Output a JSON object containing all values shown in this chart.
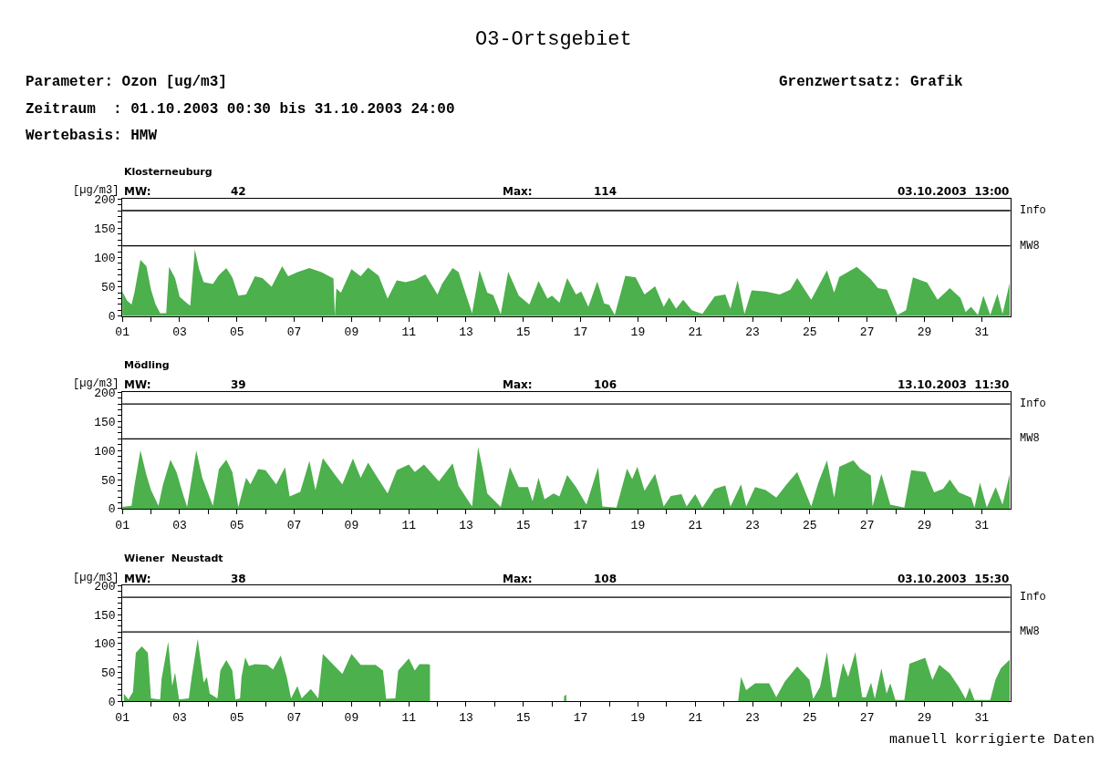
{
  "chart_data": [
    {
      "type": "area",
      "title": "O3-Ortsgebiet",
      "subtitle": "Klosterneuburg",
      "ylabel": "[µg/m3]",
      "annotations": [
        "Parameter: Ozon [ug/m3]",
        "Zeitraum  : 01.10.2003 00:30 bis 31.10.2003 24:00",
        "Wertebasis: HMW",
        "Grenzwertsatz: Grafik",
        "MW:",
        "42",
        "Max:",
        "114",
        "03.10.2003  13:00"
      ],
      "x": [
        1.0,
        1.16,
        1.32,
        1.42,
        1.63,
        1.84,
        2.0,
        2.16,
        2.32,
        2.53,
        2.63,
        2.84,
        3.0,
        3.26,
        3.37,
        3.53,
        3.68,
        3.84,
        4.16,
        4.37,
        4.63,
        4.84,
        5.05,
        5.32,
        5.63,
        5.89,
        6.21,
        6.58,
        6.79,
        7.11,
        7.53,
        7.95,
        8.37,
        8.42,
        8.47,
        8.63,
        9.0,
        9.32,
        9.58,
        9.95,
        10.26,
        10.58,
        10.89,
        11.21,
        11.58,
        12.0,
        12.16,
        12.53,
        12.74,
        13.21,
        13.47,
        13.74,
        13.95,
        14.21,
        14.47,
        14.84,
        15.21,
        15.53,
        15.84,
        16.0,
        16.26,
        16.53,
        16.84,
        17.02,
        17.27,
        17.58,
        17.82,
        18.0,
        18.19,
        18.56,
        18.92,
        19.23,
        19.6,
        19.9,
        20.09,
        20.33,
        20.58,
        20.88,
        21.25,
        21.68,
        22.05,
        22.23,
        22.48,
        22.72,
        22.97,
        23.46,
        23.95,
        24.32,
        24.56,
        25.05,
        25.6,
        25.85,
        26.03,
        26.64,
        27.13,
        27.38,
        27.69,
        28.06,
        28.36,
        28.6,
        29.1,
        29.46,
        29.89,
        30.26,
        30.44,
        30.63,
        30.87,
        31.06,
        31.3,
        31.55,
        31.73,
        31.98
      ],
      "series": [
        {
          "color": "#4cb04c",
          "values": [
            42,
            27,
            20,
            40,
            96,
            85,
            45,
            20,
            5,
            5,
            84,
            65,
            33,
            22,
            18,
            114,
            80,
            58,
            55,
            70,
            82,
            66,
            35,
            37,
            68,
            65,
            50,
            85,
            68,
            75,
            82,
            75,
            64,
            0,
            47,
            40,
            80,
            68,
            83,
            69,
            30,
            61,
            58,
            62,
            71,
            37,
            55,
            82,
            75,
            5,
            78,
            40,
            36,
            3,
            76,
            35,
            20,
            60,
            30,
            35,
            23,
            65,
            37,
            42,
            16,
            59,
            22,
            19,
            2,
            69,
            66,
            37,
            51,
            16,
            32,
            13,
            28,
            10,
            4,
            34,
            37,
            13,
            61,
            4,
            44,
            42,
            37,
            45,
            65,
            28,
            78,
            40,
            67,
            84,
            63,
            48,
            45,
            2,
            10,
            66,
            57,
            28,
            48,
            31,
            7,
            16,
            2,
            35,
            2,
            38,
            4,
            57
          ]
        }
      ],
      "xlim": [
        1,
        32
      ],
      "ylim": [
        0,
        200
      ],
      "xticks": [
        {
          "value": 1,
          "label": "01"
        },
        {
          "value": 2,
          "label": null
        },
        {
          "value": 3,
          "label": "03"
        },
        {
          "value": 4,
          "label": null
        },
        {
          "value": 5,
          "label": "05"
        },
        {
          "value": 6,
          "label": null
        },
        {
          "value": 7,
          "label": "07"
        },
        {
          "value": 8,
          "label": null
        },
        {
          "value": 9,
          "label": "09"
        },
        {
          "value": 10,
          "label": null
        },
        {
          "value": 11,
          "label": "11"
        },
        {
          "value": 12,
          "label": null
        },
        {
          "value": 13,
          "label": "13"
        },
        {
          "value": 14,
          "label": null
        },
        {
          "value": 15,
          "label": "15"
        },
        {
          "value": 16,
          "label": null
        },
        {
          "value": 17,
          "label": "17"
        },
        {
          "value": 18,
          "label": null
        },
        {
          "value": 19,
          "label": "19"
        },
        {
          "value": 20,
          "label": null
        },
        {
          "value": 21,
          "label": "21"
        },
        {
          "value": 22,
          "label": null
        },
        {
          "value": 23,
          "label": "23"
        },
        {
          "value": 24,
          "label": null
        },
        {
          "value": 25,
          "label": "25"
        },
        {
          "value": 26,
          "label": null
        },
        {
          "value": 27,
          "label": "27"
        },
        {
          "value": 28,
          "label": null
        },
        {
          "value": 29,
          "label": "29"
        },
        {
          "value": 30,
          "label": null
        },
        {
          "value": 31,
          "label": "31"
        }
      ],
      "yticks": [
        0,
        {
          "value": 10,
          "label": null
        },
        {
          "value": 20,
          "label": null
        },
        {
          "value": 30,
          "label": null
        },
        {
          "value": 40,
          "label": null
        },
        50,
        {
          "value": 60,
          "label": null
        },
        {
          "value": 70,
          "label": null
        },
        {
          "value": 80,
          "label": null
        },
        {
          "value": 90,
          "label": null
        },
        100,
        {
          "value": 110,
          "label": null
        },
        {
          "value": 120,
          "label": null
        },
        {
          "value": 130,
          "label": null
        },
        {
          "value": 140,
          "label": null
        },
        150,
        {
          "value": 160,
          "label": null
        },
        {
          "value": 170,
          "label": null
        },
        {
          "value": 180,
          "label": null
        },
        {
          "value": 190,
          "label": null
        },
        200
      ],
      "ref_lines": [
        {
          "axis": "y",
          "value": 180,
          "label": "Info",
          "color": "#000000"
        },
        {
          "axis": "y",
          "value": 120,
          "label": "MW8",
          "color": "#000000"
        }
      ],
      "marker": "none"
    },
    {
      "type": "area",
      "subtitle": "Mödling",
      "ylabel": "[µg/m3]",
      "annotations": [
        "MW:",
        "39",
        "Max:",
        "106",
        "13.10.2003  11:30"
      ],
      "x": [
        1.0,
        1.32,
        1.42,
        1.63,
        1.84,
        2.0,
        2.26,
        2.42,
        2.68,
        2.89,
        3.11,
        3.26,
        3.58,
        3.79,
        4.16,
        4.37,
        4.63,
        4.84,
        5.05,
        5.32,
        5.47,
        5.74,
        6.0,
        6.37,
        6.68,
        6.84,
        7.21,
        7.53,
        7.74,
        8.0,
        8.47,
        8.68,
        9.05,
        9.32,
        9.58,
        9.95,
        10.26,
        10.58,
        11.0,
        11.21,
        11.53,
        12.05,
        12.53,
        12.74,
        13.21,
        13.42,
        13.58,
        13.74,
        14.21,
        14.53,
        14.84,
        15.16,
        15.32,
        15.53,
        15.74,
        16.05,
        16.26,
        16.53,
        16.84,
        17.2,
        17.61,
        17.76,
        18.25,
        18.62,
        18.8,
        18.98,
        19.23,
        19.6,
        19.9,
        20.15,
        20.52,
        20.7,
        21.0,
        21.25,
        21.68,
        22.05,
        22.23,
        22.6,
        22.78,
        23.09,
        23.46,
        23.83,
        24.19,
        24.56,
        25.05,
        25.3,
        25.6,
        25.85,
        26.03,
        26.52,
        26.76,
        27.13,
        27.19,
        27.5,
        27.81,
        28.3,
        28.54,
        29.04,
        29.34,
        29.65,
        29.89,
        30.2,
        30.63,
        30.75,
        30.94,
        31.18,
        31.49,
        31.73,
        31.98
      ],
      "series": [
        {
          "color": "#4cb04c",
          "values": [
            3,
            5,
            39,
            100,
            58,
            32,
            5,
            42,
            84,
            63,
            26,
            3,
            100,
            53,
            5,
            68,
            84,
            63,
            3,
            53,
            42,
            68,
            66,
            42,
            71,
            21,
            29,
            82,
            32,
            87,
            55,
            42,
            86,
            53,
            79,
            50,
            26,
            66,
            76,
            63,
            76,
            47,
            78,
            39,
            4,
            106,
            68,
            26,
            3,
            71,
            37,
            37,
            13,
            53,
            16,
            26,
            21,
            58,
            37,
            7,
            71,
            4,
            2,
            69,
            51,
            72,
            31,
            60,
            4,
            22,
            25,
            4,
            25,
            2,
            34,
            40,
            4,
            42,
            4,
            37,
            32,
            19,
            42,
            63,
            4,
            45,
            83,
            19,
            72,
            83,
            69,
            57,
            4,
            60,
            7,
            2,
            66,
            63,
            28,
            34,
            50,
            28,
            19,
            2,
            45,
            2,
            37,
            7,
            60
          ]
        }
      ],
      "xlim": [
        1,
        32
      ],
      "ylim": [
        0,
        200
      ],
      "xticks": [
        {
          "value": 1,
          "label": "01"
        },
        {
          "value": 2,
          "label": null
        },
        {
          "value": 3,
          "label": "03"
        },
        {
          "value": 4,
          "label": null
        },
        {
          "value": 5,
          "label": "05"
        },
        {
          "value": 6,
          "label": null
        },
        {
          "value": 7,
          "label": "07"
        },
        {
          "value": 8,
          "label": null
        },
        {
          "value": 9,
          "label": "09"
        },
        {
          "value": 10,
          "label": null
        },
        {
          "value": 11,
          "label": "11"
        },
        {
          "value": 12,
          "label": null
        },
        {
          "value": 13,
          "label": "13"
        },
        {
          "value": 14,
          "label": null
        },
        {
          "value": 15,
          "label": "15"
        },
        {
          "value": 16,
          "label": null
        },
        {
          "value": 17,
          "label": "17"
        },
        {
          "value": 18,
          "label": null
        },
        {
          "value": 19,
          "label": "19"
        },
        {
          "value": 20,
          "label": null
        },
        {
          "value": 21,
          "label": "21"
        },
        {
          "value": 22,
          "label": null
        },
        {
          "value": 23,
          "label": "23"
        },
        {
          "value": 24,
          "label": null
        },
        {
          "value": 25,
          "label": "25"
        },
        {
          "value": 26,
          "label": null
        },
        {
          "value": 27,
          "label": "27"
        },
        {
          "value": 28,
          "label": null
        },
        {
          "value": 29,
          "label": "29"
        },
        {
          "value": 30,
          "label": null
        },
        {
          "value": 31,
          "label": "31"
        }
      ],
      "yticks": [
        0,
        {
          "value": 10,
          "label": null
        },
        {
          "value": 20,
          "label": null
        },
        {
          "value": 30,
          "label": null
        },
        {
          "value": 40,
          "label": null
        },
        50,
        {
          "value": 60,
          "label": null
        },
        {
          "value": 70,
          "label": null
        },
        {
          "value": 80,
          "label": null
        },
        {
          "value": 90,
          "label": null
        },
        100,
        {
          "value": 110,
          "label": null
        },
        {
          "value": 120,
          "label": null
        },
        {
          "value": 130,
          "label": null
        },
        {
          "value": 140,
          "label": null
        },
        150,
        {
          "value": 160,
          "label": null
        },
        {
          "value": 170,
          "label": null
        },
        {
          "value": 180,
          "label": null
        },
        {
          "value": 190,
          "label": null
        },
        200
      ],
      "ref_lines": [
        {
          "axis": "y",
          "value": 180,
          "label": "Info",
          "color": "#000000"
        },
        {
          "axis": "y",
          "value": 120,
          "label": "MW8",
          "color": "#000000"
        }
      ],
      "marker": "none"
    },
    {
      "type": "area",
      "subtitle": "Wiener  Neustadt",
      "ylabel": "[µg/m3]",
      "annotations": [
        "MW:",
        "38",
        "Max:",
        "108",
        "03.10.2003  15:30",
        "manuell korrigierte Daten"
      ],
      "x": [
        1.05,
        1.21,
        1.37,
        1.47,
        1.68,
        1.89,
        2.0,
        2.32,
        2.37,
        2.6,
        2.74,
        2.84,
        2.98,
        3.32,
        3.42,
        3.63,
        3.84,
        3.95,
        4.05,
        4.32,
        4.42,
        4.63,
        4.84,
        4.95,
        5.11,
        5.16,
        5.29,
        5.42,
        5.63,
        6.05,
        6.26,
        6.53,
        6.74,
        6.89,
        7.11,
        7.26,
        7.58,
        7.84,
        8.0,
        8.37,
        8.68,
        9.0,
        9.32,
        9.84,
        10.1,
        10.21,
        10.53,
        10.63,
        11.0,
        11.21,
        11.37,
        11.68,
        11.74,
        11.76,
        16.42,
        16.5,
        16.53,
        22.5,
        22.6,
        22.78,
        23.09,
        23.58,
        23.83,
        24.13,
        24.56,
        24.99,
        25.12,
        25.36,
        25.6,
        25.79,
        25.91,
        26.16,
        26.34,
        26.59,
        26.83,
        26.96,
        27.14,
        27.27,
        27.5,
        27.68,
        27.81,
        27.99,
        28.3,
        28.48,
        29.03,
        29.28,
        29.52,
        29.89,
        30.2,
        30.44,
        30.58,
        30.75,
        31.3,
        31.48,
        31.67,
        31.98
      ],
      "series": [
        {
          "color": "#4cb04c",
          "values": [
            13,
            3,
            16,
            84,
            95,
            84,
            5,
            3,
            39,
            103,
            26,
            50,
            3,
            5,
            42,
            108,
            32,
            42,
            13,
            5,
            53,
            71,
            53,
            3,
            5,
            42,
            76,
            61,
            64,
            63,
            55,
            79,
            42,
            5,
            26,
            5,
            21,
            5,
            82,
            63,
            47,
            82,
            63,
            63,
            53,
            4,
            5,
            53,
            74,
            53,
            64,
            64,
            63,
            null,
            9,
            11,
            null,
            1,
            42,
            19,
            31,
            31,
            7,
            34,
            60,
            37,
            4,
            25,
            85,
            7,
            7,
            66,
            42,
            85,
            7,
            7,
            32,
            4,
            57,
            13,
            31,
            2,
            2,
            65,
            75,
            37,
            63,
            48,
            25,
            4,
            24,
            2,
            2,
            37,
            57,
            72
          ]
        }
      ],
      "xlim": [
        1,
        32
      ],
      "ylim": [
        0,
        200
      ],
      "xticks": [
        {
          "value": 1,
          "label": "01"
        },
        {
          "value": 2,
          "label": null
        },
        {
          "value": 3,
          "label": "03"
        },
        {
          "value": 4,
          "label": null
        },
        {
          "value": 5,
          "label": "05"
        },
        {
          "value": 6,
          "label": null
        },
        {
          "value": 7,
          "label": "07"
        },
        {
          "value": 8,
          "label": null
        },
        {
          "value": 9,
          "label": "09"
        },
        {
          "value": 10,
          "label": null
        },
        {
          "value": 11,
          "label": "11"
        },
        {
          "value": 12,
          "label": null
        },
        {
          "value": 13,
          "label": "13"
        },
        {
          "value": 14,
          "label": null
        },
        {
          "value": 15,
          "label": "15"
        },
        {
          "value": 16,
          "label": null
        },
        {
          "value": 17,
          "label": "17"
        },
        {
          "value": 18,
          "label": null
        },
        {
          "value": 19,
          "label": "19"
        },
        {
          "value": 20,
          "label": null
        },
        {
          "value": 21,
          "label": "21"
        },
        {
          "value": 22,
          "label": null
        },
        {
          "value": 23,
          "label": "23"
        },
        {
          "value": 24,
          "label": null
        },
        {
          "value": 25,
          "label": "25"
        },
        {
          "value": 26,
          "label": null
        },
        {
          "value": 27,
          "label": "27"
        },
        {
          "value": 28,
          "label": null
        },
        {
          "value": 29,
          "label": "29"
        },
        {
          "value": 30,
          "label": null
        },
        {
          "value": 31,
          "label": "31"
        }
      ],
      "yticks": [
        0,
        {
          "value": 10,
          "label": null
        },
        {
          "value": 20,
          "label": null
        },
        {
          "value": 30,
          "label": null
        },
        {
          "value": 40,
          "label": null
        },
        50,
        {
          "value": 60,
          "label": null
        },
        {
          "value": 70,
          "label": null
        },
        {
          "value": 80,
          "label": null
        },
        {
          "value": 90,
          "label": null
        },
        100,
        {
          "value": 110,
          "label": null
        },
        {
          "value": 120,
          "label": null
        },
        {
          "value": 130,
          "label": null
        },
        {
          "value": 140,
          "label": null
        },
        150,
        {
          "value": 160,
          "label": null
        },
        {
          "value": 170,
          "label": null
        },
        {
          "value": 180,
          "label": null
        },
        {
          "value": 190,
          "label": null
        },
        200
      ],
      "ref_lines": [
        {
          "axis": "y",
          "value": 180,
          "label": "Info",
          "color": "#000000"
        },
        {
          "axis": "y",
          "value": 120,
          "label": "MW8",
          "color": "#000000"
        }
      ],
      "marker": "none"
    }
  ]
}
